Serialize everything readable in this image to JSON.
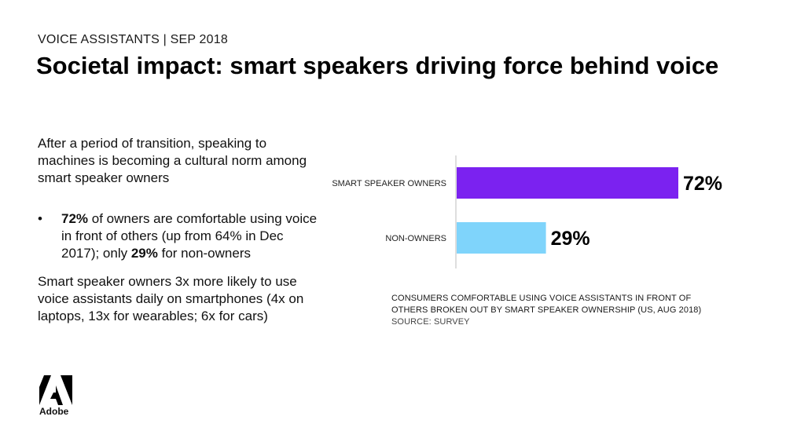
{
  "header": {
    "eyebrow": "VOICE ASSISTANTS | SEP 2018",
    "title": "Societal impact: smart speakers driving force behind voice"
  },
  "body": {
    "intro": "After a period of transition, speaking to machines is becoming a cultural norm among smart speaker owners",
    "bullet": {
      "marker": "•",
      "pct_owners": "72%",
      "text_a": " of owners are comfortable using voice in front of others (up from 64% in Dec 2017); only ",
      "pct_non": "29%",
      "text_b": " for non-owners"
    },
    "closing": "Smart speaker owners 3x more likely to use voice assistants daily on smartphones (4x on laptops, 13x for wearables; 6x for cars)"
  },
  "chart_data": {
    "type": "bar",
    "orientation": "horizontal",
    "categories": [
      "SMART SPEAKER OWNERS",
      "NON-OWNERS"
    ],
    "values": [
      72,
      29
    ],
    "value_labels": [
      "72%",
      "29%"
    ],
    "colors": [
      "#7B22F0",
      "#7FD4FB"
    ],
    "xlim": [
      0,
      100
    ],
    "grid": false
  },
  "caption": {
    "line": "CONSUMERS COMFORTABLE USING VOICE ASSISTANTS IN FRONT OF OTHERS BROKEN OUT BY SMART SPEAKER OWNERSHIP (US, AUG 2018)",
    "source": "SOURCE: SURVEY"
  },
  "logo": {
    "wordmark": "Adobe",
    "color": "#000000"
  }
}
